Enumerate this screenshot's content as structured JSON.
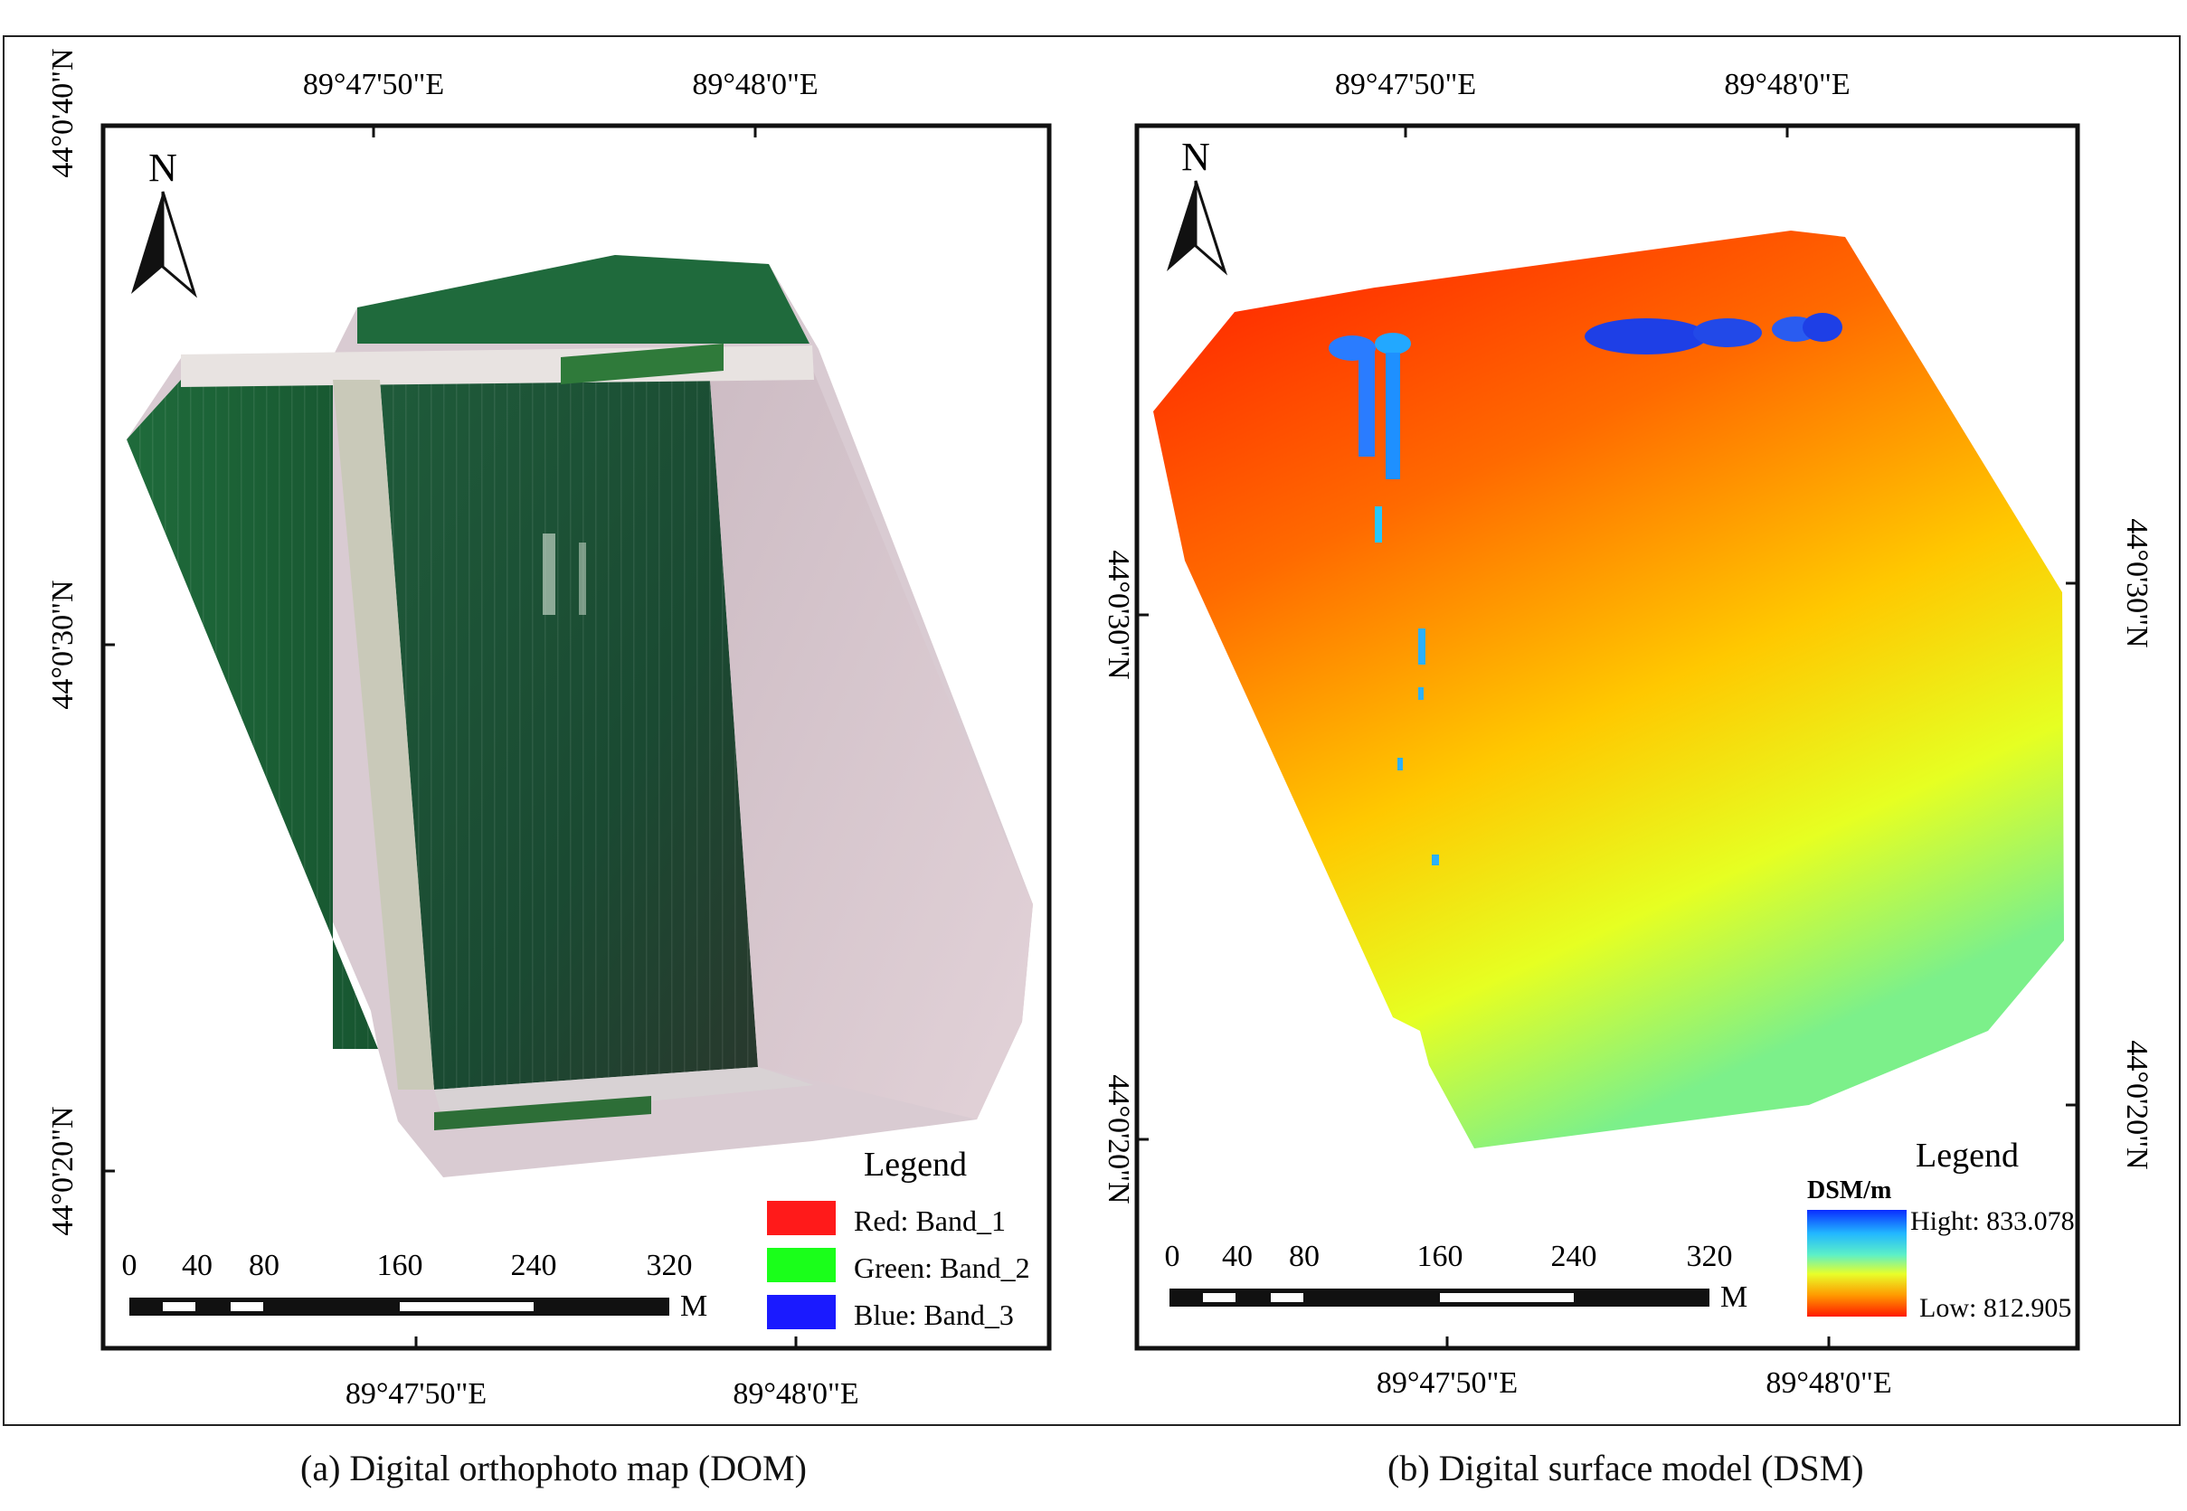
{
  "panels": [
    {
      "id": "dom",
      "caption": "(a) Digital orthophoto map (DOM)",
      "top_lon_labels": [
        "89°47'50\"E",
        "89°48'0\"E"
      ],
      "bottom_lon_labels": [
        "89°47'50\"E",
        "89°48'0\"E"
      ],
      "left_lat_labels": [
        "44°0'40\"N",
        "44°0'30\"N",
        "44°0'20\"N"
      ],
      "north_label": "N",
      "scale_labels": [
        "0",
        "40",
        "80",
        "160",
        "240",
        "320"
      ],
      "scale_unit": "M",
      "legend": {
        "title": "Legend",
        "items": [
          {
            "label": "Red: Band_1",
            "color": "#ff1a1a"
          },
          {
            "label": "Green: Band_2",
            "color": "#1aff1a"
          },
          {
            "label": "Blue: Band_3",
            "color": "#1a1aff"
          }
        ]
      }
    },
    {
      "id": "dsm",
      "caption": "(b) Digital surface model (DSM)",
      "top_lon_labels": [
        "89°47'50\"E",
        "89°48'0\"E"
      ],
      "bottom_lon_labels": [
        "89°47'50\"E",
        "89°48'0\"E"
      ],
      "left_lat_labels": [
        "44°0'30\"N",
        "44°0'20\"N"
      ],
      "right_lat_labels": [
        "44°0'30\"N",
        "44°0'20\"N"
      ],
      "north_label": "N",
      "scale_labels": [
        "0",
        "40",
        "80",
        "160",
        "240",
        "320"
      ],
      "scale_unit": "M",
      "legend": {
        "title": "Legend",
        "ramp_title": "DSM/m",
        "high_label": "Hight: 833.078",
        "low_label": "Low: 812.905",
        "ramp_colors": [
          "#0a2cff",
          "#22b7ff",
          "#5cf0c8",
          "#e8ff2a",
          "#ff9a00",
          "#ff1a00"
        ]
      }
    }
  ]
}
